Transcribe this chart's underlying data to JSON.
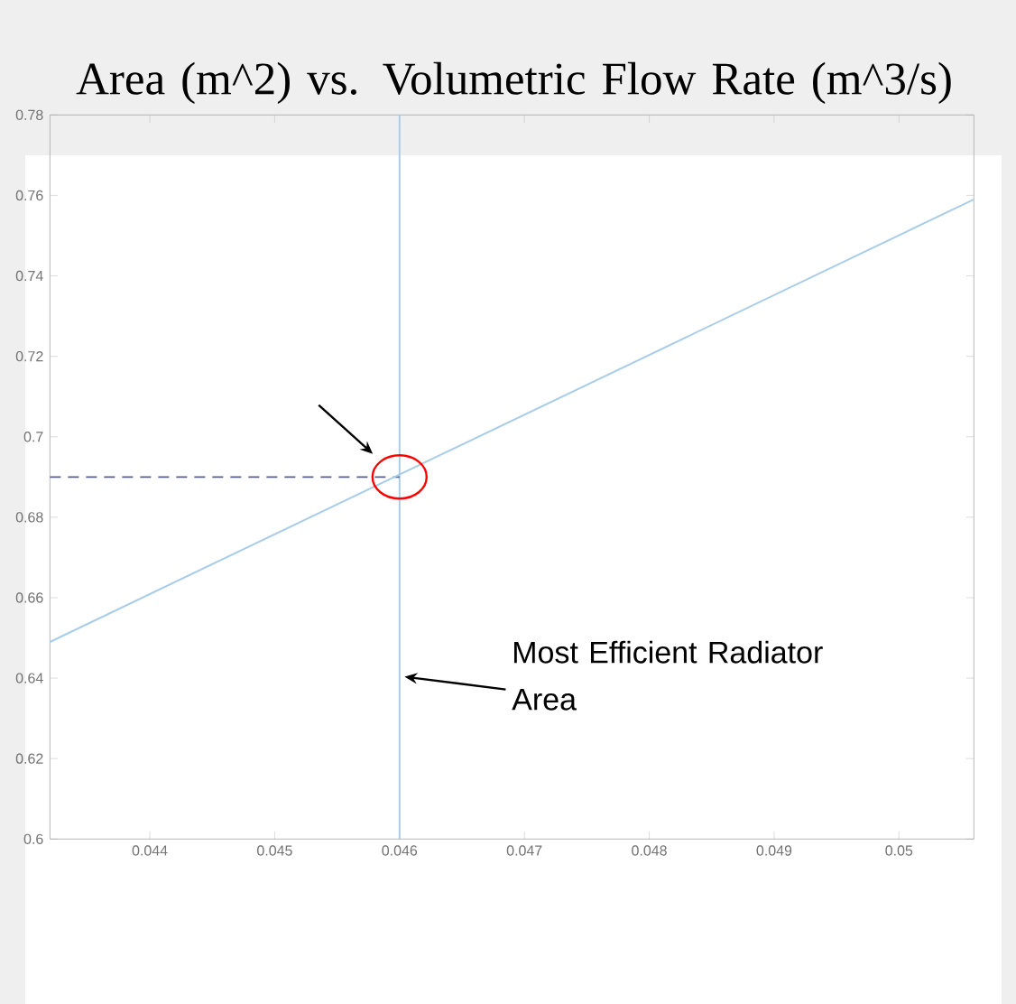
{
  "chart_data": {
    "type": "line",
    "title": "Area (m^2) vs. Volumetric Flow Rate (m^3/s)",
    "x": [
      0.0432,
      0.0506
    ],
    "series": [
      {
        "color": "#a9cde8",
        "values": [
          0.649,
          0.759
        ]
      }
    ],
    "xlim": [
      0.0432,
      0.0506
    ],
    "ylim": [
      0.6,
      0.78
    ],
    "xticks": [
      0.044,
      0.045,
      0.046,
      0.047,
      0.048,
      0.049,
      0.05
    ],
    "yticks": [
      0.6,
      0.62,
      0.64,
      0.66,
      0.68,
      0.7,
      0.72,
      0.74,
      0.76,
      0.78
    ],
    "ref_lines": [
      {
        "axis": "x",
        "value": 0.046,
        "color": "#a9cde8",
        "line_style": "solid"
      },
      {
        "axis": "y",
        "value": 0.69,
        "color": "#5a5f8a",
        "line_style": "dashed"
      }
    ],
    "annotations": [
      {
        "text": "Most Efficient Radiator Area",
        "x": 0.046,
        "y": 0.64
      }
    ],
    "grid": false
  }
}
